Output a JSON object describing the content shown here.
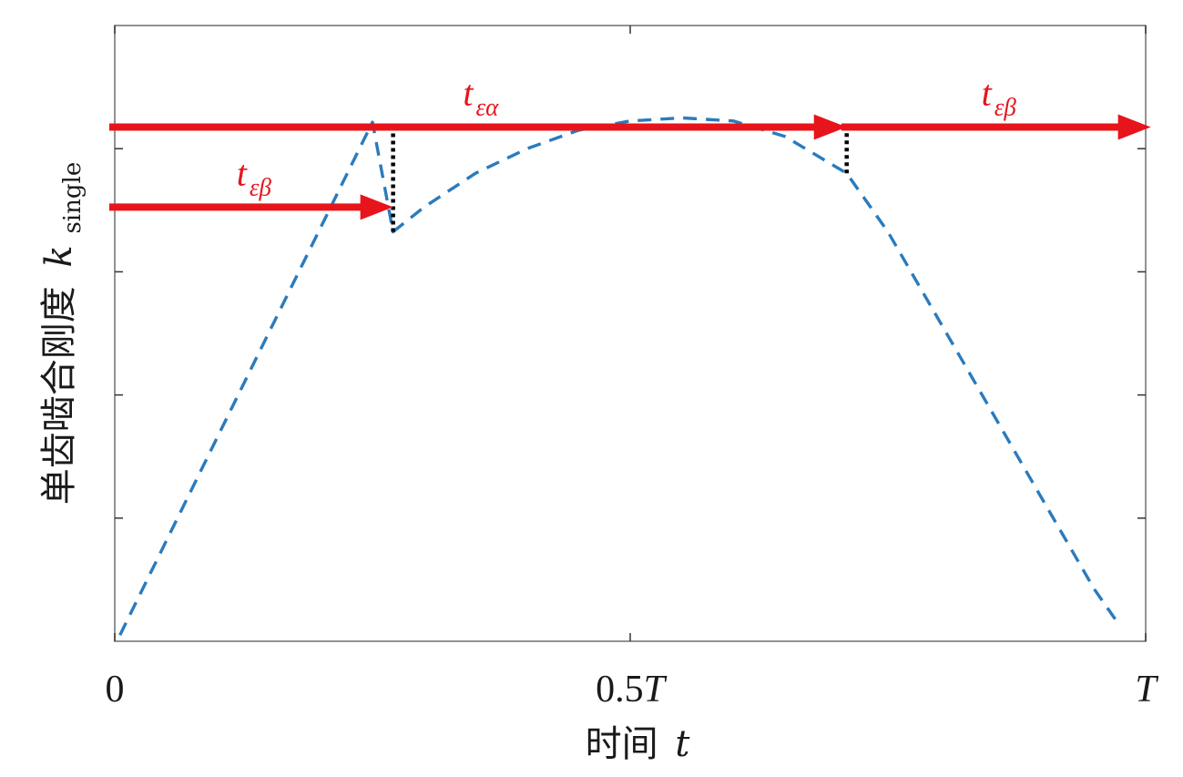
{
  "chart_data": {
    "type": "line",
    "xlabel": {
      "text": "时间",
      "var": "t"
    },
    "ylabel": {
      "text": "单齿啮合刚度",
      "var": "k",
      "sub": "single"
    },
    "xlim": [
      0,
      1
    ],
    "ylim": [
      0,
      1
    ],
    "x_ticks": [
      {
        "value": 0,
        "num": "0",
        "unit": ""
      },
      {
        "value": 0.5,
        "num": "0.5",
        "unit": "T"
      },
      {
        "value": 1,
        "num": "",
        "unit": "T"
      }
    ],
    "y_ticks": [
      0.2,
      0.4,
      0.6,
      0.8
    ],
    "grid": false,
    "colors": {
      "curve": "#2a7bbd",
      "arrow": "#e8141b",
      "marker": "#000000",
      "axis": "#333333"
    },
    "series": [
      {
        "style": "dashed",
        "x": [
          0.005,
          0.05,
          0.1,
          0.15,
          0.2,
          0.25,
          0.27,
          0.3,
          0.35,
          0.4,
          0.45,
          0.5,
          0.55,
          0.6,
          0.65,
          0.7,
          0.71,
          0.75,
          0.8,
          0.85,
          0.9,
          0.95,
          0.975
        ],
        "y": [
          0.01,
          0.163,
          0.333,
          0.503,
          0.673,
          0.843,
          0.665,
          0.705,
          0.76,
          0.8,
          0.83,
          0.845,
          0.85,
          0.845,
          0.82,
          0.77,
          0.76,
          0.665,
          0.52,
          0.375,
          0.23,
          0.085,
          0.025
        ]
      }
    ],
    "annotations": [
      {
        "kind": "arrow",
        "x0": 0,
        "x1": 0.27,
        "y": 0.705,
        "base": "t",
        "sub": "εβ"
      },
      {
        "kind": "arrow",
        "x0": 0,
        "x1": 0.71,
        "y": 0.835,
        "base": "t",
        "sub": "εα"
      },
      {
        "kind": "arrow",
        "x0": 0.71,
        "x1": 1.005,
        "y": 0.835,
        "base": "t",
        "sub": "εβ"
      },
      {
        "kind": "dotted-vline",
        "x": 0.27,
        "y0": 0.665,
        "y1": 0.835
      },
      {
        "kind": "dotted-vline",
        "x": 0.71,
        "y0": 0.76,
        "y1": 0.835
      }
    ]
  }
}
